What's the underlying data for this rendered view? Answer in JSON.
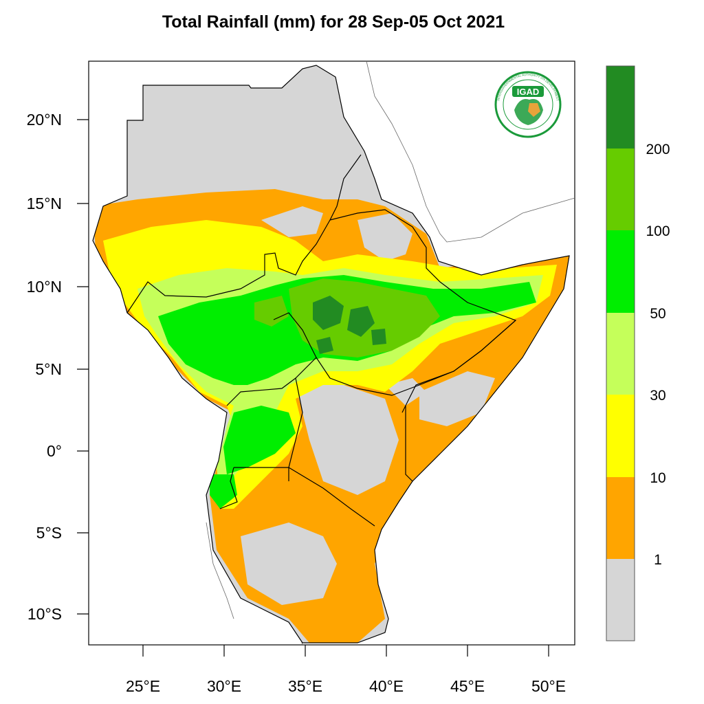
{
  "title": "Total Rainfall (mm) for 28 Sep-05 Oct 2021",
  "logo": {
    "text": "IGAD",
    "ring_text": "INTERGOVERNMENTAL AUTHORITY ON DEVELOPMENT"
  },
  "axes": {
    "lat_ticks": [
      "20°N",
      "15°N",
      "10°N",
      "5°N",
      "0°",
      "5°S",
      "10°S"
    ],
    "lon_ticks": [
      "25°E",
      "30°E",
      "35°E",
      "40°E",
      "45°E",
      "50°E"
    ]
  },
  "colorbar": {
    "colors": [
      "#d6d6d6",
      "#ffa500",
      "#ffff00",
      "#c5ff5a",
      "#00ee00",
      "#66cc00",
      "#228b22"
    ],
    "labels": [
      "1",
      "10",
      "30",
      "50",
      "100",
      "200"
    ]
  },
  "colors": {
    "no_rain": "#d6d6d6",
    "r1_10": "#ffa500",
    "r10_30": "#ffff00",
    "r30_50": "#c5ff5a",
    "r50_100": "#00ee00",
    "r100_200": "#66cc00",
    "r200": "#228b22",
    "igad_green": "#1a9a3a"
  }
}
